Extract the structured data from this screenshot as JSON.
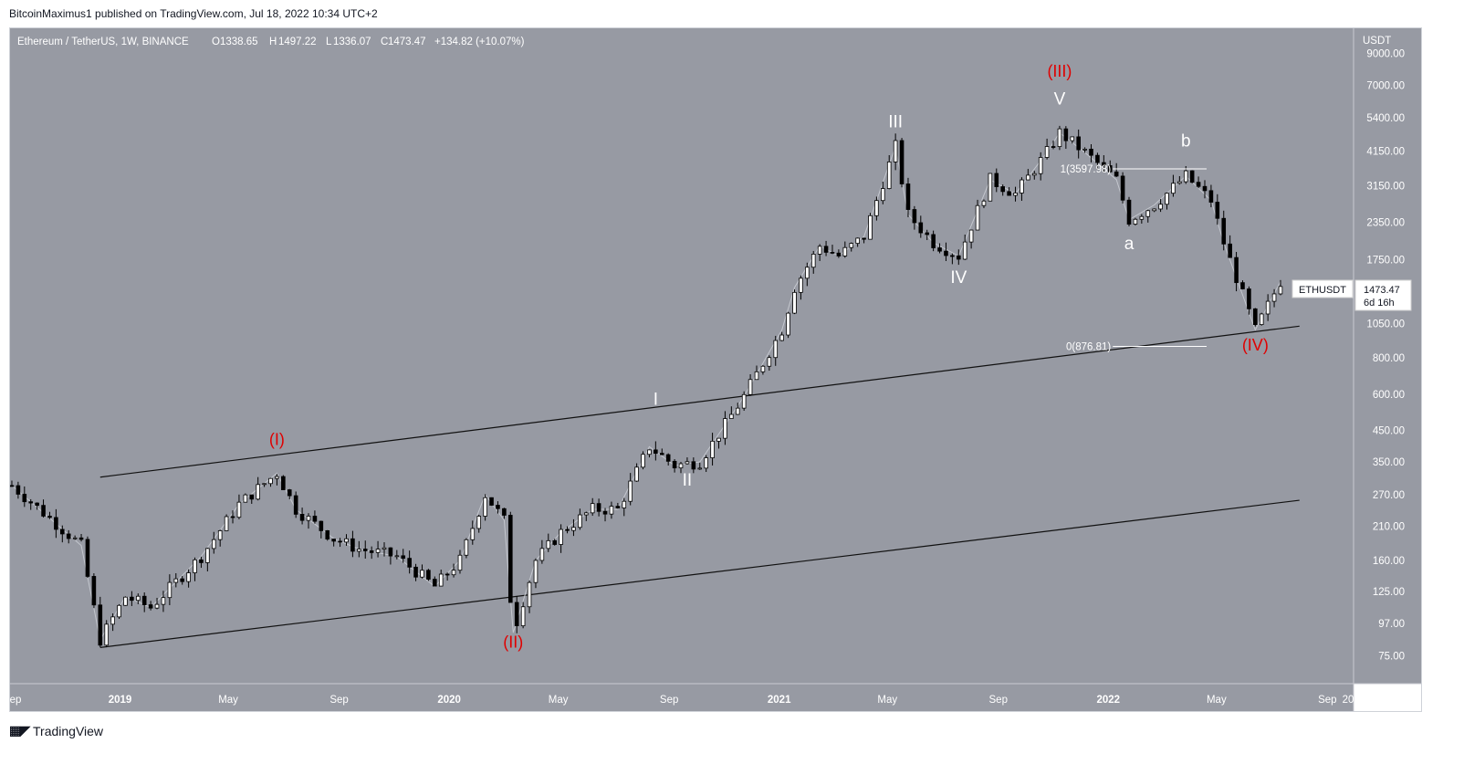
{
  "publisher_line": "BitcoinMaximus1 published on TradingView.com, Jul 18, 2022 10:34 UTC+2",
  "brand": {
    "name": "TradingView",
    "logo_icon": "tradingview-logo-icon"
  },
  "header": {
    "symbol": "Ethereum / TetherUS, 1W, BINANCE",
    "o_label": "O",
    "o": "1338.65",
    "h_label": "H",
    "h": "1497.22",
    "l_label": "L",
    "l": "1336.07",
    "c_label": "C",
    "c": "1473.47",
    "change": "+134.82 (+10.07%)"
  },
  "colors": {
    "plot_bg": "#979aa3",
    "candle_up": "#ffffff",
    "candle_down": "#000000",
    "red_label": "#e00000",
    "white_label": "#ffffff",
    "axis_text": "#ffffff"
  },
  "price_axis": {
    "currency": "USDT",
    "ticks": [
      "9000.00",
      "7000.00",
      "5400.00",
      "4150.00",
      "3150.00",
      "2350.00",
      "1750.00",
      "1050.00",
      "800.00",
      "600.00",
      "450.00",
      "350.00",
      "270.00",
      "210.00",
      "160.00",
      "125.00",
      "97.00",
      "75.00"
    ]
  },
  "time_axis": {
    "ticks": [
      "ep",
      "2019",
      "May",
      "Sep",
      "2020",
      "May",
      "Sep",
      "2021",
      "May",
      "Sep",
      "2022",
      "May",
      "Sep",
      "20"
    ]
  },
  "last_price": {
    "symbol": "ETHUSDT",
    "price": "1473.47",
    "countdown": "6d 16h"
  },
  "wave_labels": {
    "red": [
      "(I)",
      "(II)",
      "(III)",
      "(IV)"
    ],
    "white": [
      "I",
      "II",
      "III",
      "IV",
      "V",
      "a",
      "b"
    ]
  },
  "fib": {
    "top": "1(3597.98)",
    "bottom": "0(876.81)"
  },
  "chart_data": {
    "type": "line",
    "title": "Ethereum / TetherUS, 1W, BINANCE",
    "scale": "log",
    "ylim": [
      60,
      11000
    ],
    "x_range": [
      "2018-09-01",
      "2022-09-30"
    ],
    "series": [
      {
        "x": [
          "2018-09-03",
          "2018-11-19",
          "2018-12-10",
          "2019-01-07",
          "2019-02-04",
          "2019-04-01",
          "2019-05-13",
          "2019-06-24",
          "2019-07-15",
          "2019-08-26",
          "2019-09-23",
          "2019-11-04",
          "2019-12-16",
          "2020-01-13",
          "2020-02-10",
          "2020-03-02",
          "2020-03-12",
          "2020-04-06",
          "2020-05-04",
          "2020-06-08",
          "2020-07-06",
          "2020-08-10",
          "2020-09-07",
          "2020-10-05",
          "2020-11-02",
          "2020-11-23",
          "2021-01-04",
          "2021-01-18",
          "2021-02-15",
          "2021-03-08",
          "2021-04-05",
          "2021-05-10",
          "2021-05-24",
          "2021-06-21",
          "2021-07-19",
          "2021-08-23",
          "2021-09-20",
          "2021-10-25",
          "2021-11-08",
          "2021-12-06",
          "2022-01-10",
          "2022-01-24",
          "2022-02-21",
          "2022-03-28",
          "2022-04-25",
          "2022-05-09",
          "2022-06-13",
          "2022-07-11"
        ],
        "values": [
          290,
          180,
          85,
          120,
          110,
          165,
          250,
          320,
          240,
          190,
          175,
          165,
          130,
          160,
          270,
          220,
          90,
          160,
          200,
          240,
          240,
          395,
          340,
          350,
          470,
          590,
          1000,
          1400,
          1950,
          1800,
          2100,
          4300,
          2500,
          2000,
          1800,
          3300,
          2950,
          4100,
          4800,
          4100,
          3300,
          2400,
          2700,
          3400,
          2800,
          2000,
          1000,
          1470
        ]
      }
    ],
    "annotations": [
      {
        "text": "(I)",
        "x": "2019-06-24",
        "y": 400
      },
      {
        "text": "(II)",
        "x": "2020-03-12",
        "y": 80
      },
      {
        "text": "(III)",
        "x": "2021-11-08",
        "y": 7500
      },
      {
        "text": "(IV)",
        "x": "2022-06-13",
        "y": 850
      },
      {
        "text": "I",
        "x": "2020-08-17",
        "y": 550
      },
      {
        "text": "II",
        "x": "2020-09-21",
        "y": 290
      },
      {
        "text": "III",
        "x": "2021-05-10",
        "y": 5000
      },
      {
        "text": "IV",
        "x": "2021-07-19",
        "y": 1450
      },
      {
        "text": "V",
        "x": "2021-11-08",
        "y": 6000
      },
      {
        "text": "a",
        "x": "2022-01-24",
        "y": 1900
      },
      {
        "text": "b",
        "x": "2022-03-28",
        "y": 4300
      }
    ],
    "channel": {
      "upper": {
        "from": {
          "x": "2018-12-10",
          "y": 310
        },
        "to": {
          "x": "2022-08-01",
          "y": 1030
        }
      },
      "lower": {
        "from": {
          "x": "2018-12-10",
          "y": 80
        },
        "to": {
          "x": "2022-08-01",
          "y": 258
        }
      }
    },
    "fib_levels": [
      {
        "label": "1(3597.98)",
        "y": 3597.98
      },
      {
        "label": "0(876.81)",
        "y": 876.81
      }
    ],
    "grid": false,
    "legend": "none"
  }
}
